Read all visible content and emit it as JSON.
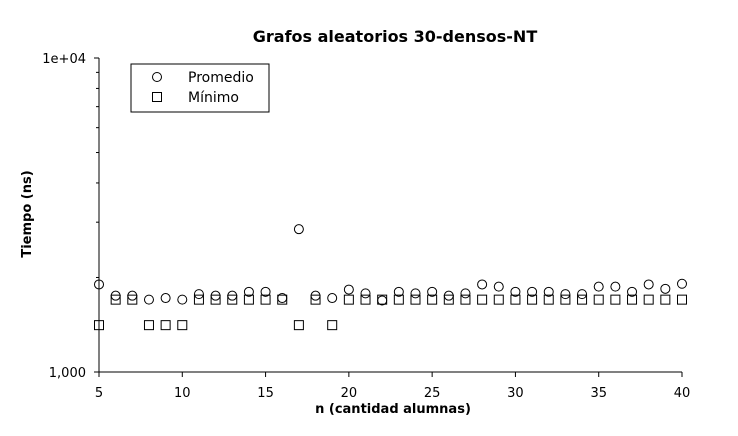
{
  "chart_data": {
    "type": "scatter",
    "title": "Grafos aleatorios 30-densos-NT",
    "xlabel": "n (cantidad alumnas)",
    "ylabel": "Tiempo (ns)",
    "xlim": [
      5,
      40
    ],
    "ylim": [
      1000,
      10000
    ],
    "yscale": "log",
    "x_ticks": [
      5,
      10,
      15,
      20,
      25,
      30,
      35,
      40
    ],
    "y_ticks": [
      {
        "value": 1000,
        "label": "1,000"
      },
      {
        "value": 10000,
        "label": "1e+04"
      }
    ],
    "grid": false,
    "legend": "top-left",
    "x": [
      5,
      6,
      7,
      8,
      9,
      10,
      11,
      12,
      13,
      14,
      15,
      16,
      17,
      18,
      19,
      20,
      21,
      22,
      23,
      24,
      25,
      26,
      27,
      28,
      29,
      30,
      31,
      32,
      33,
      34,
      35,
      36,
      37,
      38,
      39,
      40
    ],
    "series": [
      {
        "name": "Promedio",
        "marker": "circle",
        "values": [
          1900,
          1750,
          1750,
          1700,
          1720,
          1700,
          1770,
          1750,
          1750,
          1800,
          1800,
          1720,
          2850,
          1750,
          1720,
          1830,
          1780,
          1690,
          1800,
          1780,
          1800,
          1750,
          1780,
          1900,
          1870,
          1800,
          1800,
          1800,
          1770,
          1770,
          1870,
          1870,
          1800,
          1900,
          1840,
          1910
        ]
      },
      {
        "name": "Mínimo",
        "marker": "square",
        "values": [
          1410,
          1700,
          1700,
          1410,
          1410,
          1410,
          1700,
          1700,
          1700,
          1700,
          1700,
          1700,
          1410,
          1700,
          1410,
          1700,
          1700,
          1700,
          1700,
          1700,
          1700,
          1700,
          1700,
          1700,
          1700,
          1700,
          1700,
          1700,
          1700,
          1700,
          1700,
          1700,
          1700,
          1700,
          1700,
          1700
        ]
      }
    ]
  }
}
